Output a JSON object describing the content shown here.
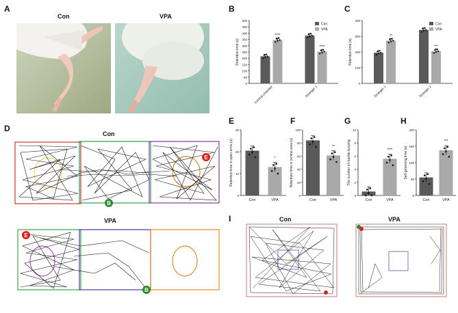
{
  "panel_letters": [
    "A",
    "B",
    "C",
    "D",
    "E",
    "F",
    "G",
    "H",
    "I"
  ],
  "colors": {
    "con": "#5a5a5a",
    "vpa": "#a9a9a9",
    "ink": "#222222",
    "photo_bg_con": "#c8cfb4",
    "photo_bg_vpa": "#a7cbc0"
  },
  "photos": {
    "con_label": "Con",
    "vpa_label": "VPA"
  },
  "panel_d": {
    "con_title": "Con",
    "vpa_title": "VPA",
    "marker_e": "E",
    "marker_b": "B",
    "chamber_colors": {
      "left": "#c0392b",
      "center": "#2e9e4a",
      "right": "#7b3fa0",
      "left_circle": "#e8e070",
      "right_circle": "#e08a2a",
      "vpa_left": "#3aa64a",
      "vpa_center": "#4b3aa6",
      "vpa_right": "#e08a2a",
      "vpa_left_circle": "#b04fc0"
    }
  },
  "panel_i": {
    "con_title": "Con",
    "vpa_title": "VPA"
  },
  "chart_data": [
    {
      "id": "B",
      "type": "bar",
      "categories": [
        "Central chamber",
        "Stranger 1"
      ],
      "series": [
        {
          "name": "Con",
          "values": [
            215,
            380
          ]
        },
        {
          "name": "VPA",
          "values": [
            345,
            252
          ]
        }
      ],
      "significance": [
        "****",
        "****"
      ],
      "ylabel": "Retention time (s)",
      "ylim": [
        0,
        500
      ],
      "yticks": [
        0,
        50,
        100,
        150,
        200,
        250,
        300,
        350,
        400,
        450,
        500
      ],
      "legend": "top-right"
    },
    {
      "id": "C",
      "type": "bar",
      "categories": [
        "Stranger 1",
        "Stranger 2"
      ],
      "series": [
        {
          "name": "Con",
          "values": [
            195,
            340
          ]
        },
        {
          "name": "VPA",
          "values": [
            272,
            205
          ]
        }
      ],
      "significance": [
        "**",
        "***"
      ],
      "ylabel": "Retention time (s)",
      "ylim": [
        0,
        400
      ],
      "yticks": [
        0,
        100,
        200,
        300,
        400
      ],
      "legend": "top-right"
    },
    {
      "id": "E",
      "type": "bar",
      "categories": [
        "Con",
        "VPA"
      ],
      "values": [
        20.5,
        13
      ],
      "significance": "*",
      "ylabel": "Retention time in open arms (s)",
      "ylim": [
        0,
        30
      ],
      "yticks": [
        0,
        10,
        20,
        30
      ]
    },
    {
      "id": "F",
      "type": "bar",
      "categories": [
        "Con",
        "VPA"
      ],
      "values": [
        84,
        61
      ],
      "significance": "**",
      "ylabel": "Retention time in central area (s)",
      "ylim": [
        0,
        100
      ],
      "yticks": [
        0,
        20,
        40,
        60,
        80,
        100
      ]
    },
    {
      "id": "G",
      "type": "bar",
      "categories": [
        "Con",
        "VPA"
      ],
      "values": [
        0.6,
        5.6
      ],
      "significance": "****",
      "ylabel": "The number of marble-burying",
      "ylim": [
        0,
        10
      ],
      "yticks": [
        0,
        2,
        4,
        6,
        8,
        10
      ]
    },
    {
      "id": "H",
      "type": "bar",
      "categories": [
        "Con",
        "VPA"
      ],
      "values": [
        55,
        138
      ],
      "significance": "***",
      "ylabel": "Self-grooming time (s)",
      "ylim": [
        0,
        200
      ],
      "yticks": [
        0,
        50,
        100,
        150,
        200
      ]
    }
  ]
}
